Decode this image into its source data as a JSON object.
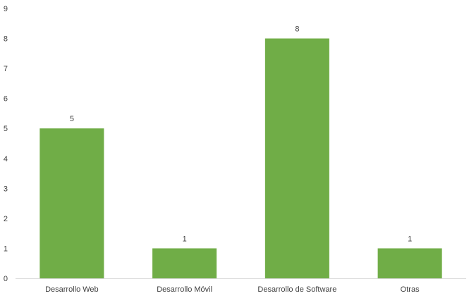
{
  "chart_data": {
    "type": "bar",
    "categories": [
      "Desarrollo Web",
      "Desarrollo Móvil",
      "Desarrollo de Software",
      "Otras"
    ],
    "values": [
      5,
      1,
      8,
      1
    ],
    "data_labels": [
      "5",
      "1",
      "8",
      "1"
    ],
    "ylim": [
      0,
      9
    ],
    "y_ticks": [
      0,
      1,
      2,
      3,
      4,
      5,
      6,
      7,
      8,
      9
    ],
    "y_tick_labels": [
      "0",
      "1",
      "2",
      "3",
      "4",
      "5",
      "6",
      "7",
      "8",
      "9"
    ],
    "grid": false,
    "legend": "none",
    "bar_color": "#70ad47",
    "axis_color": "#d9d9d9",
    "text_color": "#404040"
  }
}
